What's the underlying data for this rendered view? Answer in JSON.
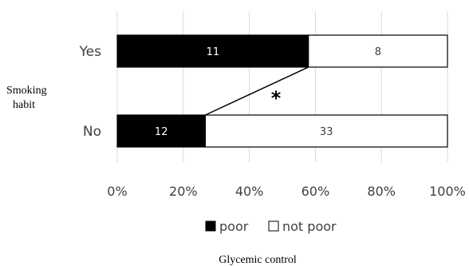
{
  "chart_data": {
    "type": "bar",
    "orientation": "horizontal",
    "stacked": "percent",
    "categories": [
      "Yes",
      "No"
    ],
    "series": [
      {
        "name": "poor",
        "values": [
          11,
          12
        ],
        "color": "#000000"
      },
      {
        "name": "not poor",
        "values": [
          8,
          33
        ],
        "color": "#ffffff"
      }
    ],
    "xlabel": "Glycemic control",
    "ylabel_lines": [
      "Smoking",
      "habit"
    ],
    "xticks": [
      "0%",
      "20%",
      "40%",
      "60%",
      "80%",
      "100%"
    ],
    "xlim": [
      0,
      100
    ],
    "grid": true,
    "legend_position": "bottom",
    "annotation": "*"
  }
}
